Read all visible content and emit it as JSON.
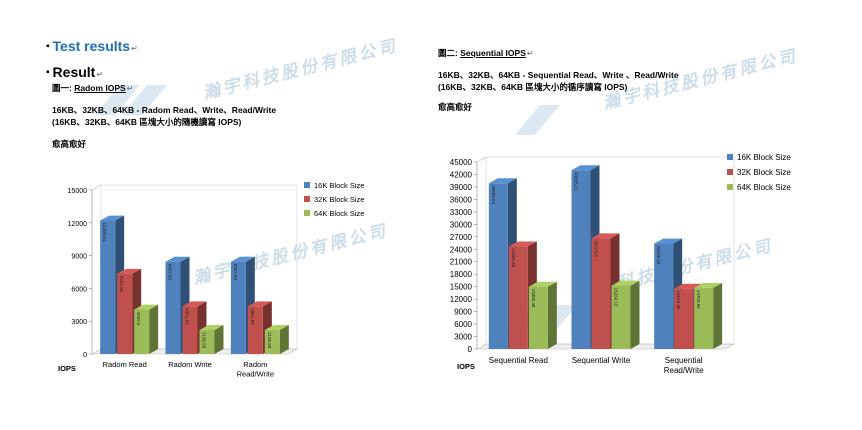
{
  "left": {
    "heading": "Test results",
    "subheading": "Result",
    "figure_label": "圖一: ",
    "figure_name": "Radom  IOPS",
    "line1": "16KB、32KB、64KB - Radom Read、Write、Read/Write",
    "line2": "(16KB、32KB、64KB 區塊大小的隨機讀寫 IOPS)",
    "note": "愈高愈好"
  },
  "right": {
    "figure_label": "圖二: ",
    "figure_name": "Sequential  IOPS",
    "line1": "16KB、32KB、64KB - Sequential Read、Write  、Read/Write",
    "line2": "(16KB、32KB、64KB 區塊大小的循序讀寫 IOPS)",
    "note": "愈高愈好"
  },
  "watermark": "瀚宇科技股份有限公司",
  "chart_data": [
    {
      "type": "bar",
      "categories": [
        "Radom Read",
        "Radom Write",
        "Radom\nRead/Write"
      ],
      "series": [
        {
          "name": "16K Block Size",
          "color": "#4f81bd",
          "values": [
            12208.54,
            8437.83,
            8437.83
          ]
        },
        {
          "name": "32K Block Size",
          "color": "#c0504d",
          "values": [
            7337.25,
            4361.85,
            4361.88
          ]
        },
        {
          "name": "64K Block Size",
          "color": "#9bbb59",
          "values": [
            4059.5,
            2195.68,
            2195.68
          ]
        }
      ],
      "value_labels": [
        [
          "12208.54",
          "8437.83",
          "8437.83"
        ],
        [
          "7337.25",
          "4361.85",
          "4361.88"
        ],
        [
          "4059.5",
          "2195.68",
          "2195.68"
        ]
      ],
      "ylabel": "IOPS",
      "ylim": [
        0,
        15000
      ],
      "yticks": [
        0,
        3000,
        6000,
        9000,
        12000,
        15000
      ],
      "legend": "top-right",
      "grid": false
    },
    {
      "type": "bar",
      "categories": [
        "Sequential Read",
        "Sequential Write",
        "Sequential\nRead/Write"
      ],
      "series": [
        {
          "name": "16K Block Size",
          "color": "#4f81bd",
          "values": [
            39886.54,
            43035.21,
            25375.49
          ]
        },
        {
          "name": "32K Block Size",
          "color": "#c0504d",
          "values": [
            24685.65,
            26624.8,
            14513.45
          ]
        },
        {
          "name": "64K Block Size",
          "color": "#9bbb59",
          "values": [
            15006.48,
            15264.13,
            14703.56
          ]
        }
      ],
      "value_labels": [
        [
          "39886.54",
          "43035.21",
          "25375.49"
        ],
        [
          "24685.65",
          "26624.8",
          "14513.45"
        ],
        [
          "15006.48",
          "15264.13",
          "14703.56"
        ]
      ],
      "ylabel": "IOPS",
      "ylim": [
        0,
        45000
      ],
      "yticks": [
        0,
        3000,
        6000,
        9000,
        12000,
        15000,
        18000,
        21000,
        24000,
        27000,
        30000,
        33000,
        36000,
        39000,
        42000,
        45000
      ],
      "legend": "top-right",
      "grid": false
    }
  ]
}
